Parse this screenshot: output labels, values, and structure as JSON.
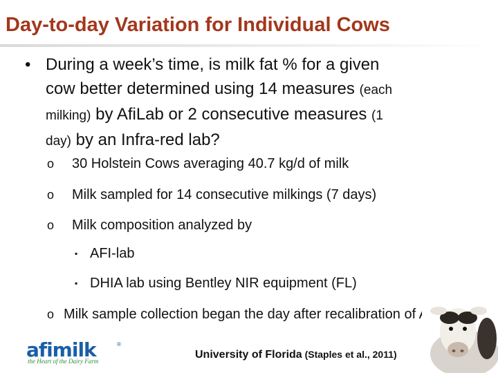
{
  "slide": {
    "title": "Day-to-day Variation for Individual Cows",
    "main_bullet": {
      "marker": "•",
      "line1": "During a week’s time, is milk fat % for a given",
      "line2a": "cow better determined using 14 measures ",
      "line2b": "(each",
      "line3a": "milking)",
      "line3b": " by AfiLab or 2 consecutive measures ",
      "line3c": "(1",
      "line4a": "day)",
      "line4b": " by an Infra-red lab?"
    },
    "sub_bullets": [
      {
        "marker": "o",
        "text": "30 Holstein Cows averaging 40.7 kg/d of milk"
      },
      {
        "marker": "o",
        "text": "Milk sampled for 14 consecutive milkings (7 days)"
      },
      {
        "marker": "o",
        "text": "Milk composition analyzed by"
      }
    ],
    "nested_bullets": [
      {
        "marker": "▪",
        "text": "AFI-lab"
      },
      {
        "marker": "▪",
        "text": "DHIA lab using Bentley NIR equipment (FL)"
      }
    ],
    "last_bullet": {
      "marker": "o",
      "text": "Milk sample collection began the day after recalibration of AFI"
    },
    "footer": {
      "logo_word": "afimilk",
      "logo_mark": "®",
      "logo_tagline": "the Heart of the Dairy Farm",
      "credit_main": "University of Florida",
      "credit_small": " (Staples et al., 2011)"
    }
  }
}
